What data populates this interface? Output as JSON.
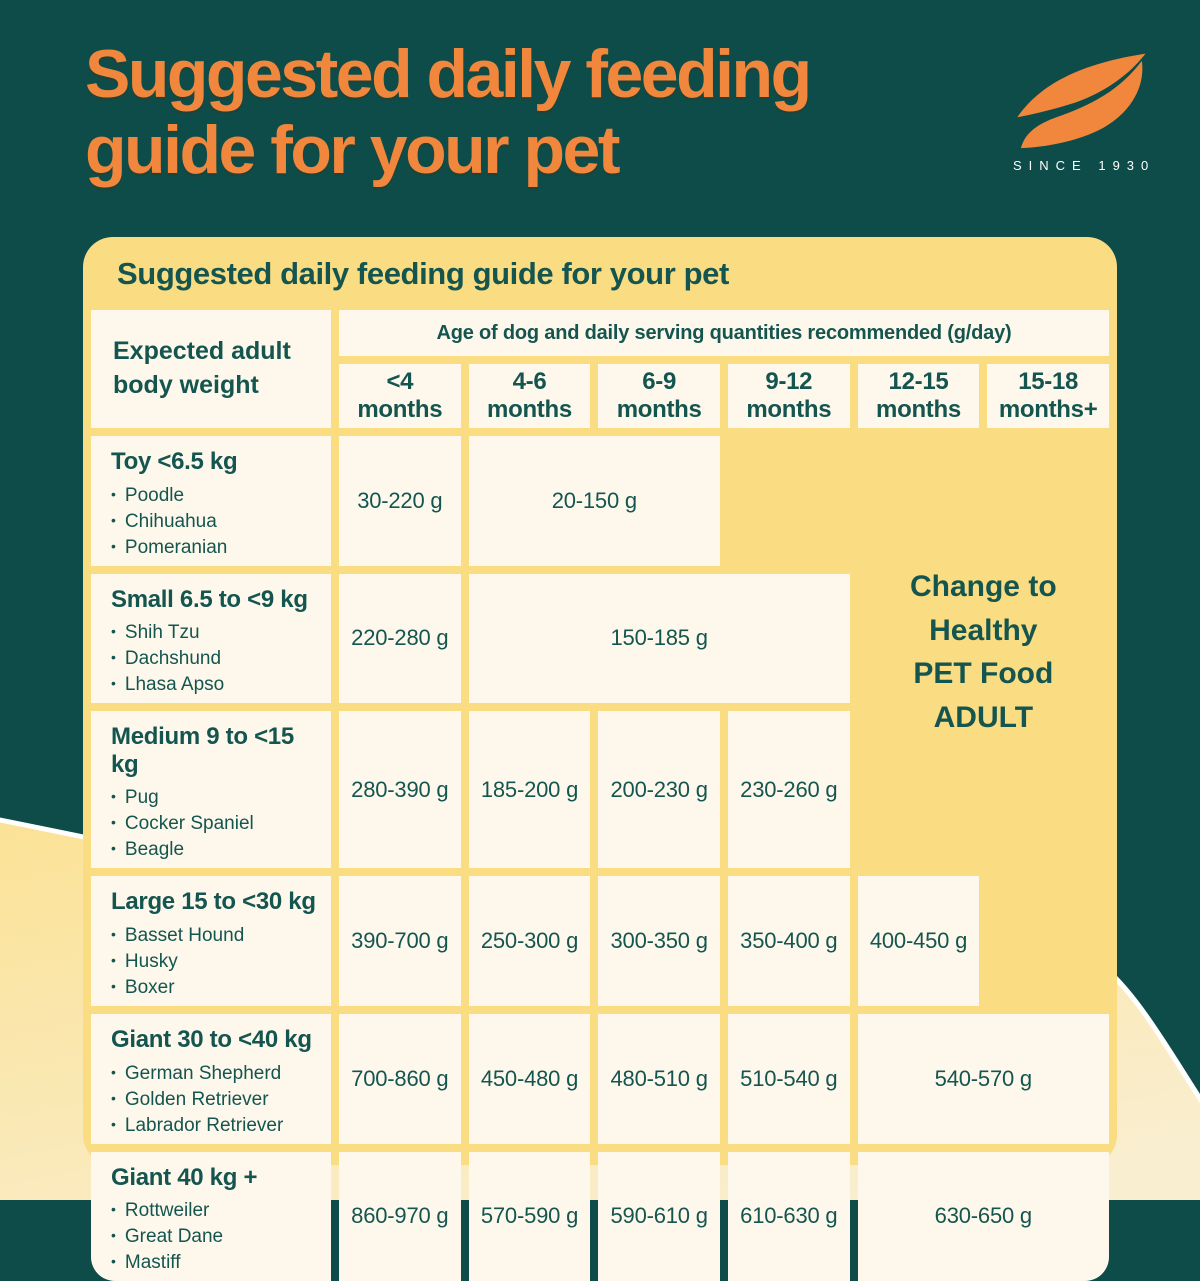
{
  "header": {
    "title": "Suggested daily feeding\nguide for your pet",
    "brand": {
      "icon": "swoosh-leaf-icon",
      "tagline": "SINCE 1930"
    }
  },
  "card": {
    "title": "Suggested daily feeding guide for your pet",
    "table": {
      "corner_header": "Expected adult\nbody weight",
      "age_group_header": "Age of dog and daily serving quantities recommended (g/day)",
      "bullet_char": "•",
      "age_columns": [
        {
          "range": "<4",
          "unit": "months"
        },
        {
          "range": "4-6",
          "unit": "months"
        },
        {
          "range": "6-9",
          "unit": "months"
        },
        {
          "range": "9-12",
          "unit": "months"
        },
        {
          "range": "12-15",
          "unit": "months"
        },
        {
          "range": "15-18",
          "unit": "months+"
        }
      ],
      "rows": [
        {
          "label": "Toy <6.5 kg",
          "breeds": [
            "Poodle",
            "Chihuahua",
            "Pomeranian"
          ],
          "cells": [
            {
              "value": "30-220 g",
              "span": 1
            },
            {
              "value": "20-150 g",
              "span": 2
            }
          ]
        },
        {
          "label": "Small 6.5 to <9 kg",
          "breeds": [
            "Shih Tzu",
            "Dachshund",
            "Lhasa Apso"
          ],
          "cells": [
            {
              "value": "220-280 g",
              "span": 1
            },
            {
              "value": "150-185 g",
              "span": 3
            }
          ]
        },
        {
          "label": "Medium 9 to <15 kg",
          "breeds": [
            "Pug",
            "Cocker Spaniel",
            "Beagle"
          ],
          "cells": [
            {
              "value": "280-390 g",
              "span": 1
            },
            {
              "value": "185-200 g",
              "span": 1
            },
            {
              "value": "200-230 g",
              "span": 1
            },
            {
              "value": "230-260 g",
              "span": 1
            }
          ]
        },
        {
          "label": "Large 15 to <30 kg",
          "breeds": [
            "Basset Hound",
            "Husky",
            "Boxer"
          ],
          "cells": [
            {
              "value": "390-700 g",
              "span": 1
            },
            {
              "value": "250-300 g",
              "span": 1
            },
            {
              "value": "300-350 g",
              "span": 1
            },
            {
              "value": "350-400 g",
              "span": 1
            },
            {
              "value": "400-450 g",
              "span": 1
            }
          ]
        },
        {
          "label": "Giant 30 to <40 kg",
          "breeds": [
            "German Shepherd",
            "Golden Retriever",
            "Labrador Retriever"
          ],
          "cells": [
            {
              "value": "700-860 g",
              "span": 1
            },
            {
              "value": "450-480 g",
              "span": 1
            },
            {
              "value": "480-510 g",
              "span": 1
            },
            {
              "value": "510-540 g",
              "span": 1
            },
            {
              "value": "540-570 g",
              "span": 2
            }
          ]
        },
        {
          "label": "Giant 40 kg +",
          "breeds": [
            "Rottweiler",
            "Great Dane",
            "Mastiff"
          ],
          "cells": [
            {
              "value": "860-970 g",
              "span": 1
            },
            {
              "value": "570-590 g",
              "span": 1
            },
            {
              "value": "590-610 g",
              "span": 1
            },
            {
              "value": "610-630 g",
              "span": 1
            },
            {
              "value": "630-650 g",
              "span": 2
            }
          ]
        }
      ],
      "adult_note": "Change to\nHealthy\nPET Food\nADULT"
    }
  },
  "colors": {
    "background_teal": "#0D4C48",
    "accent_orange": "#F0873C",
    "card_yellow": "#FADC82",
    "cell_cream": "#FDF8EB",
    "text_teal": "#155550",
    "wave_cream_top": "#FBE296",
    "wave_cream_bottom": "#F9EED0",
    "wave_edge": "#FFFFFF"
  }
}
